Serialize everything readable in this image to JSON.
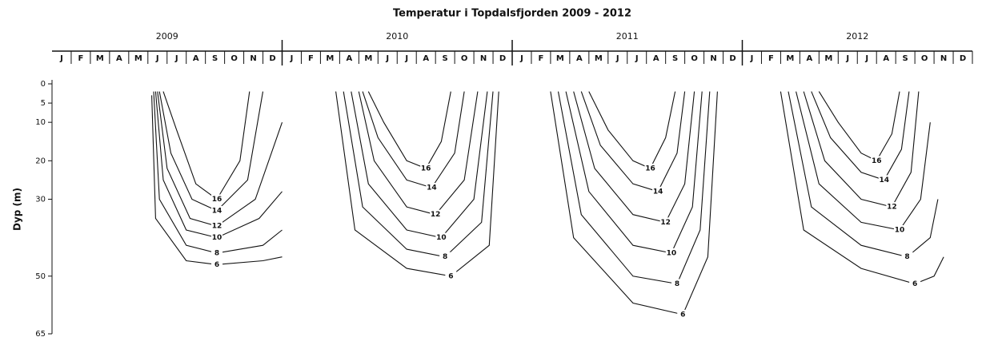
{
  "chart_data": {
    "type": "contour",
    "title": "Temperatur i Topdalsfjorden 2009 - 2012",
    "ylabel": "Dyp (m)",
    "years": [
      "2009",
      "2010",
      "2011",
      "2012"
    ],
    "months": [
      "J",
      "F",
      "M",
      "A",
      "M",
      "J",
      "J",
      "A",
      "S",
      "O",
      "N",
      "D"
    ],
    "xlim": [
      0,
      48
    ],
    "ylim": [
      0,
      65
    ],
    "yticks": [
      0,
      5,
      10,
      20,
      30,
      50,
      65
    ],
    "y_inverted": true,
    "color": "#111111",
    "series": [
      {
        "name": "16",
        "x": [
          5.8,
          6.5,
          7.5,
          8.6,
          9.8,
          10.3
        ],
        "y": [
          2,
          12,
          26,
          30,
          20,
          2
        ]
      },
      {
        "name": "14",
        "x": [
          5.6,
          6.2,
          7.3,
          8.6,
          10.2,
          11
        ],
        "y": [
          2,
          18,
          30,
          33,
          25,
          2
        ]
      },
      {
        "name": "12",
        "x": [
          5.5,
          6,
          7.2,
          8.6,
          10.6,
          12
        ],
        "y": [
          2,
          22,
          35,
          37,
          30,
          10
        ]
      },
      {
        "name": "10",
        "x": [
          5.4,
          5.8,
          7,
          8.6,
          10.8,
          12
        ],
        "y": [
          2,
          25,
          38,
          40,
          35,
          28
        ]
      },
      {
        "name": "8",
        "x": [
          5.3,
          5.6,
          7,
          8.6,
          11,
          12
        ],
        "y": [
          2,
          30,
          42,
          44,
          42,
          38
        ]
      },
      {
        "name": "6",
        "x": [
          5.2,
          5.4,
          7,
          8.6,
          11,
          12
        ],
        "y": [
          3,
          35,
          46,
          47,
          46,
          45
        ]
      },
      {
        "name": "16",
        "x": [
          16.5,
          17.3,
          18.5,
          19.5,
          20.3,
          20.8
        ],
        "y": [
          2,
          10,
          20,
          22,
          15,
          2
        ]
      },
      {
        "name": "14",
        "x": [
          16.2,
          17,
          18.5,
          19.8,
          21,
          21.5
        ],
        "y": [
          2,
          14,
          25,
          27,
          18,
          2
        ]
      },
      {
        "name": "12",
        "x": [
          16,
          16.8,
          18.5,
          20,
          21.5,
          22.2
        ],
        "y": [
          2,
          20,
          32,
          34,
          25,
          2
        ]
      },
      {
        "name": "10",
        "x": [
          15.6,
          16.5,
          18.5,
          20.3,
          22,
          22.7
        ],
        "y": [
          2,
          26,
          38,
          40,
          30,
          2
        ]
      },
      {
        "name": "8",
        "x": [
          15.2,
          16.2,
          18.5,
          20.5,
          22.4,
          23
        ],
        "y": [
          2,
          32,
          43,
          45,
          36,
          2
        ]
      },
      {
        "name": "6",
        "x": [
          14.8,
          15.8,
          18.5,
          20.8,
          22.8,
          23.3
        ],
        "y": [
          2,
          38,
          48,
          50,
          42,
          2
        ]
      },
      {
        "name": "16",
        "x": [
          28,
          29,
          30.3,
          31.2,
          32,
          32.5
        ],
        "y": [
          2,
          12,
          20,
          22,
          14,
          2
        ]
      },
      {
        "name": "14",
        "x": [
          27.6,
          28.6,
          30.3,
          31.6,
          32.6,
          33
        ],
        "y": [
          2,
          16,
          26,
          28,
          18,
          2
        ]
      },
      {
        "name": "12",
        "x": [
          27.2,
          28.3,
          30.3,
          32,
          33,
          33.5
        ],
        "y": [
          2,
          22,
          34,
          36,
          26,
          2
        ]
      },
      {
        "name": "10",
        "x": [
          26.8,
          28,
          30.3,
          32.3,
          33.4,
          33.9
        ],
        "y": [
          2,
          28,
          42,
          44,
          32,
          2
        ]
      },
      {
        "name": "8",
        "x": [
          26.4,
          27.6,
          30.3,
          32.6,
          33.8,
          34.3
        ],
        "y": [
          2,
          34,
          50,
          52,
          38,
          2
        ]
      },
      {
        "name": "6",
        "x": [
          26,
          27.2,
          30.3,
          32.9,
          34.2,
          34.7
        ],
        "y": [
          2,
          40,
          57,
          60,
          45,
          2
        ]
      },
      {
        "name": "16",
        "x": [
          40,
          41,
          42.2,
          43,
          43.8,
          44.2
        ],
        "y": [
          2,
          10,
          18,
          20,
          13,
          2
        ]
      },
      {
        "name": "14",
        "x": [
          39.6,
          40.6,
          42.2,
          43.4,
          44.3,
          44.7
        ],
        "y": [
          2,
          14,
          23,
          25,
          17,
          2
        ]
      },
      {
        "name": "12",
        "x": [
          39.2,
          40.3,
          42.2,
          43.8,
          44.8,
          45.2
        ],
        "y": [
          2,
          20,
          30,
          32,
          23,
          2
        ]
      },
      {
        "name": "10",
        "x": [
          38.8,
          40,
          42.2,
          44.2,
          45.3,
          45.8
        ],
        "y": [
          2,
          26,
          36,
          38,
          30,
          10
        ]
      },
      {
        "name": "8",
        "x": [
          38.4,
          39.6,
          42.2,
          44.6,
          45.8,
          46.2
        ],
        "y": [
          2,
          32,
          42,
          45,
          40,
          30
        ]
      },
      {
        "name": "6",
        "x": [
          38,
          39.2,
          42.2,
          45,
          46,
          46.5
        ],
        "y": [
          2,
          38,
          48,
          52,
          50,
          45
        ]
      }
    ]
  }
}
